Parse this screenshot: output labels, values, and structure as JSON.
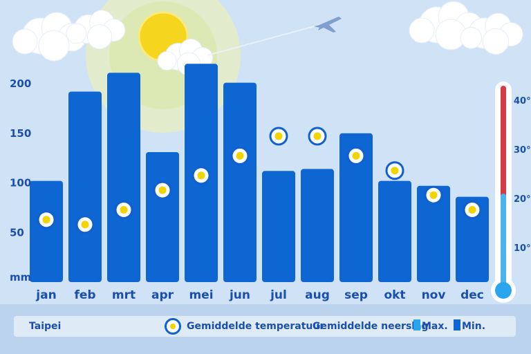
{
  "chart_data": {
    "type": "bar",
    "title": "",
    "categories": [
      "jan",
      "feb",
      "mrt",
      "apr",
      "mei",
      "jun",
      "jul",
      "aug",
      "sep",
      "okt",
      "nov",
      "dec"
    ],
    "series": [
      {
        "name": "Gemiddelde neerslag",
        "unit": "mm",
        "values": [
          102,
          192,
          211,
          131,
          220,
          201,
          112,
          114,
          150,
          102,
          97,
          86
        ]
      },
      {
        "name": "Gemiddelde temperatuur",
        "unit": "°C",
        "values": [
          17,
          16,
          19,
          23,
          26,
          30,
          34,
          34,
          30,
          27,
          22,
          19
        ]
      }
    ],
    "y_left": {
      "unit_label": "mm",
      "ticks": [
        50,
        100,
        150,
        200
      ],
      "ylim": [
        0,
        200
      ]
    },
    "y_right": {
      "ticks": [
        "10°c",
        "20°c",
        "30°c",
        "40°c"
      ],
      "ylim": [
        0,
        40
      ]
    },
    "grid": false,
    "legend_position": "bottom"
  },
  "legend": {
    "location": "Taipei",
    "temp_label": "Gemiddelde temperatuur",
    "rain_label": "Gemiddelde neerslag",
    "max_label": "Max.",
    "min_label": "Min."
  },
  "colors": {
    "sky": "#cfe2f6",
    "bar": "#0e66d3",
    "text": "#1a4fae",
    "temp_ring": "#1060d0",
    "temp_dot": "#f2d400",
    "max_swatch": "#29a4f0",
    "min_swatch": "#0e66d3"
  },
  "decorations": [
    "sun",
    "clouds",
    "airplane-icon",
    "thermometer-icon"
  ]
}
